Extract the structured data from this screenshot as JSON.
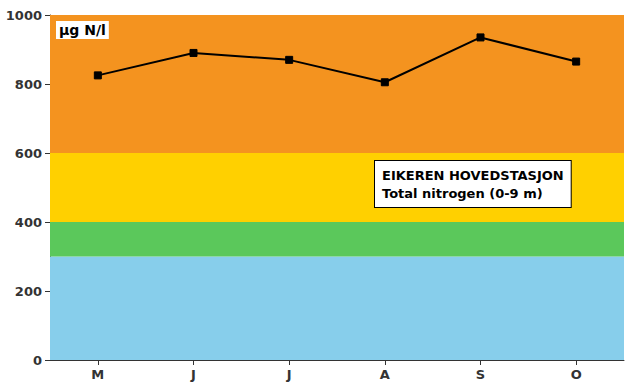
{
  "chart_data": {
    "type": "line",
    "categories": [
      "M",
      "J",
      "J",
      "A",
      "S",
      "O"
    ],
    "values": [
      825,
      890,
      870,
      805,
      935,
      865
    ],
    "color": "#000000",
    "marker": "square",
    "ylim": [
      0,
      1000
    ],
    "yticks": [
      0,
      200,
      400,
      600,
      800,
      1000
    ],
    "grid": false,
    "ylabel": "μg N/l",
    "annotations": [
      "EIKEREN HOVEDSTASJON",
      "Total nitrogen (0-9 m)"
    ],
    "bands": [
      {
        "ymin": 0,
        "ymax": 300,
        "color": "#87CEEB"
      },
      {
        "ymin": 300,
        "ymax": 400,
        "color": "#5BC85B"
      },
      {
        "ymin": 400,
        "ymax": 600,
        "color": "#FFD000"
      },
      {
        "ymin": 600,
        "ymax": 1000,
        "color": "#F4931F"
      }
    ]
  }
}
